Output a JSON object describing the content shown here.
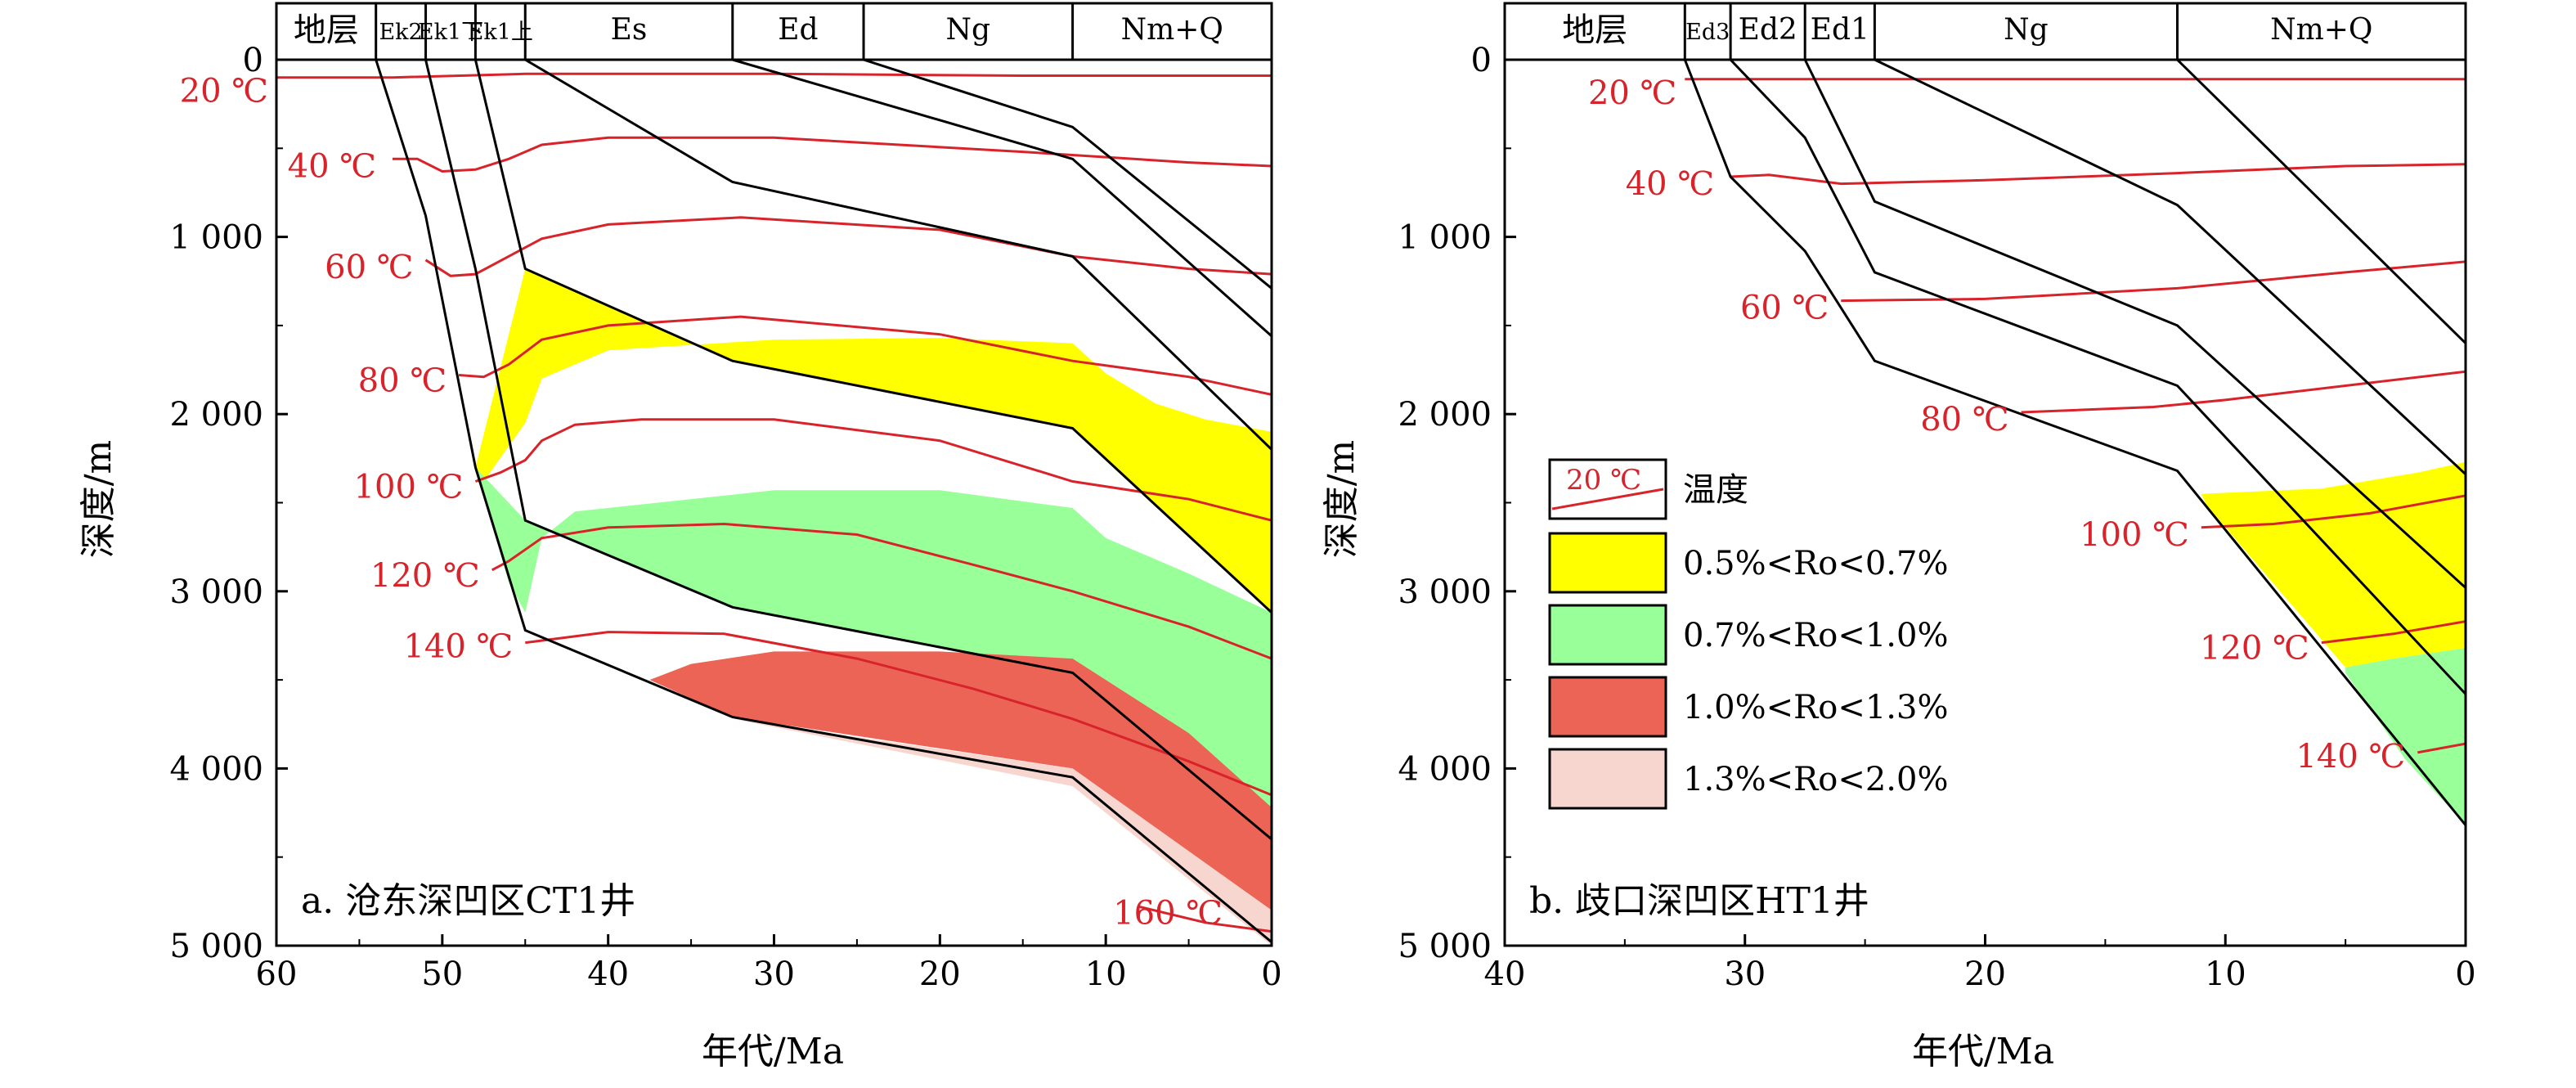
{
  "colors": {
    "isotherm": "#d8232a",
    "ro_0.5_0.7": "#ffff00",
    "ro_0.7_1.0": "#99ff99",
    "ro_1.0_1.3": "#eb6456",
    "ro_1.3_2.0": "#f7d6d0",
    "boundary": "#000000"
  },
  "common": {
    "strat_header_label": "地层",
    "x_axis_title": "年代/Ma",
    "y_axis_title": "深度/m",
    "y_ticks": [
      "0",
      "1 000",
      "2 000",
      "3 000",
      "4 000",
      "5 000"
    ]
  },
  "legend": {
    "temperature_sample": "20 ℃",
    "temperature": "温度",
    "ro_classes": [
      {
        "label": "0.5%<Ro<0.7%",
        "color": "#ffff00"
      },
      {
        "label": "0.7%<Ro<1.0%",
        "color": "#99ff99"
      },
      {
        "label": "1.0%<Ro<1.3%",
        "color": "#eb6456"
      },
      {
        "label": "1.3%<Ro<2.0%",
        "color": "#f7d6d0"
      }
    ]
  },
  "chart_data": [
    {
      "type": "area",
      "panel_label": "a. 沧东深凹区CT1井",
      "xlim": [
        60,
        0
      ],
      "ylim": [
        0,
        5000
      ],
      "x_ticks": [
        "60",
        "50",
        "40",
        "30",
        "20",
        "10",
        "0"
      ],
      "x_tick_values": [
        60,
        50,
        40,
        30,
        20,
        10,
        0
      ],
      "y_tick_values": [
        0,
        1000,
        2000,
        3000,
        4000,
        5000
      ],
      "strata": [
        {
          "label": "Ek2",
          "from": 54,
          "to": 51
        },
        {
          "label": "Ek1下",
          "from": 51,
          "to": 48
        },
        {
          "label": "Ek1上",
          "from": 48,
          "to": 45
        },
        {
          "label": "Es",
          "from": 45,
          "to": 32.5
        },
        {
          "label": "Ed",
          "from": 32.5,
          "to": 24.6
        },
        {
          "label": "Ng",
          "from": 24.6,
          "to": 12
        },
        {
          "label": "Nm+Q",
          "from": 12,
          "to": 0
        }
      ],
      "burial_curves": [
        [
          [
            54,
            0
          ],
          [
            51,
            880
          ],
          [
            48,
            2300
          ],
          [
            45,
            3220
          ],
          [
            32.5,
            3710
          ],
          [
            12,
            4050
          ],
          [
            0,
            4980
          ]
        ],
        [
          [
            51,
            0
          ],
          [
            48,
            1180
          ],
          [
            45,
            2600
          ],
          [
            32.5,
            3090
          ],
          [
            12,
            3460
          ],
          [
            0,
            4400
          ]
        ],
        [
          [
            48,
            0
          ],
          [
            45,
            1180
          ],
          [
            32.5,
            1700
          ],
          [
            12,
            2080
          ],
          [
            0,
            3120
          ]
        ],
        [
          [
            45,
            0
          ],
          [
            32.5,
            690
          ],
          [
            12,
            1110
          ],
          [
            0,
            2200
          ]
        ],
        [
          [
            32.5,
            0
          ],
          [
            12,
            560
          ],
          [
            0,
            1560
          ]
        ],
        [
          [
            24.6,
            0
          ],
          [
            12,
            380
          ],
          [
            0,
            1290
          ]
        ]
      ],
      "isotherms": [
        {
          "label": "20 ℃",
          "points": [
            [
              60,
              100
            ],
            [
              53,
              100
            ],
            [
              45,
              80
            ],
            [
              30,
              80
            ],
            [
              15,
              90
            ],
            [
              0,
              90
            ]
          ]
        },
        {
          "label": "40 ℃",
          "points": [
            [
              53,
              560
            ],
            [
              51.5,
              560
            ],
            [
              50,
              630
            ],
            [
              48,
              620
            ],
            [
              46,
              560
            ],
            [
              44,
              480
            ],
            [
              40,
              440
            ],
            [
              30,
              440
            ],
            [
              15,
              520
            ],
            [
              5,
              580
            ],
            [
              0,
              600
            ]
          ]
        },
        {
          "label": "60 ℃",
          "points": [
            [
              51,
              1130
            ],
            [
              49.5,
              1220
            ],
            [
              48,
              1210
            ],
            [
              46,
              1110
            ],
            [
              44,
              1010
            ],
            [
              40,
              930
            ],
            [
              32,
              890
            ],
            [
              20,
              960
            ],
            [
              12,
              1110
            ],
            [
              5,
              1180
            ],
            [
              0,
              1210
            ]
          ]
        },
        {
          "label": "80 ℃",
          "points": [
            [
              49,
              1780
            ],
            [
              47.5,
              1790
            ],
            [
              46,
              1720
            ],
            [
              44,
              1580
            ],
            [
              40,
              1500
            ],
            [
              32,
              1450
            ],
            [
              20,
              1550
            ],
            [
              12,
              1700
            ],
            [
              5,
              1790
            ],
            [
              0,
              1890
            ]
          ]
        },
        {
          "label": "100 ℃",
          "points": [
            [
              48,
              2380
            ],
            [
              46.5,
              2330
            ],
            [
              45,
              2260
            ],
            [
              44,
              2150
            ],
            [
              42,
              2060
            ],
            [
              38,
              2030
            ],
            [
              30,
              2030
            ],
            [
              20,
              2150
            ],
            [
              12,
              2380
            ],
            [
              5,
              2480
            ],
            [
              0,
              2600
            ]
          ]
        },
        {
          "label": "120 ℃",
          "points": [
            [
              47,
              2880
            ],
            [
              46,
              2830
            ],
            [
              44,
              2700
            ],
            [
              40,
              2640
            ],
            [
              33,
              2620
            ],
            [
              25,
              2680
            ],
            [
              18,
              2850
            ],
            [
              12,
              3000
            ],
            [
              5,
              3200
            ],
            [
              0,
              3380
            ]
          ]
        },
        {
          "label": "140 ℃",
          "points": [
            [
              45,
              3290
            ],
            [
              40,
              3230
            ],
            [
              33,
              3240
            ],
            [
              25,
              3380
            ],
            [
              18,
              3550
            ],
            [
              12,
              3720
            ],
            [
              5,
              3960
            ],
            [
              0,
              4150
            ]
          ]
        },
        {
          "label": "160 ℃",
          "points": [
            [
              8,
              4780
            ],
            [
              4,
              4870
            ],
            [
              0,
              4920
            ]
          ]
        }
      ],
      "ro_zones": [
        {
          "class": "0.5%<Ro<0.7%",
          "polygon": [
            [
              47.5,
              2380
            ],
            [
              45,
              2050
            ],
            [
              44,
              1800
            ],
            [
              40,
              1640
            ],
            [
              30,
              1580
            ],
            [
              20,
              1570
            ],
            [
              12,
              1600
            ],
            [
              10,
              1770
            ],
            [
              7,
              1940
            ],
            [
              4,
              2030
            ],
            [
              0,
              2100
            ],
            [
              0,
              3120
            ],
            [
              12,
              2080
            ],
            [
              32.5,
              1700
            ],
            [
              45,
              1180
            ],
            [
              48,
              2300
            ]
          ]
        },
        {
          "class": "0.7%<Ro<1.0%",
          "polygon": [
            [
              45,
              3120
            ],
            [
              44,
              2700
            ],
            [
              42,
              2550
            ],
            [
              30,
              2430
            ],
            [
              20,
              2430
            ],
            [
              12,
              2530
            ],
            [
              10,
              2700
            ],
            [
              5,
              2900
            ],
            [
              0,
              3120
            ],
            [
              0,
              4220
            ],
            [
              12,
              3460
            ],
            [
              32.5,
              3090
            ],
            [
              45,
              2600
            ],
            [
              48,
              2300
            ],
            [
              46,
              2950
            ]
          ]
        },
        {
          "class": "1.0%<Ro<1.3%",
          "polygon": [
            [
              37.5,
              3500
            ],
            [
              35,
              3410
            ],
            [
              30,
              3340
            ],
            [
              20,
              3340
            ],
            [
              12,
              3380
            ],
            [
              5,
              3800
            ],
            [
              0,
              4220
            ],
            [
              0,
              4800
            ],
            [
              12,
              4000
            ],
            [
              32.5,
              3710
            ]
          ]
        },
        {
          "class": "1.3%<Ro<2.0%",
          "polygon": [
            [
              12,
              4000
            ],
            [
              0,
              4800
            ],
            [
              0,
              5000
            ],
            [
              12,
              4100
            ],
            [
              32.5,
              3720
            ]
          ]
        }
      ]
    },
    {
      "type": "area",
      "panel_label": "b. 歧口深凹区HT1井",
      "xlim": [
        40,
        0
      ],
      "ylim": [
        0,
        5000
      ],
      "x_ticks": [
        "40",
        "30",
        "20",
        "10",
        "0"
      ],
      "x_tick_values": [
        40,
        30,
        20,
        10,
        0
      ],
      "y_tick_values": [
        0,
        1000,
        2000,
        3000,
        4000,
        5000
      ],
      "strata": [
        {
          "label": "Ed3",
          "from": 32.5,
          "to": 30.6
        },
        {
          "label": "Ed2",
          "from": 30.6,
          "to": 27.5
        },
        {
          "label": "Ed1",
          "from": 27.5,
          "to": 24.6
        },
        {
          "label": "Ng",
          "from": 24.6,
          "to": 12
        },
        {
          "label": "Nm+Q",
          "from": 12,
          "to": 0
        }
      ],
      "burial_curves": [
        [
          [
            32.5,
            0
          ],
          [
            30.6,
            660
          ],
          [
            27.5,
            1080
          ],
          [
            24.6,
            1700
          ],
          [
            12,
            2320
          ],
          [
            0,
            4320
          ]
        ],
        [
          [
            30.6,
            0
          ],
          [
            27.5,
            440
          ],
          [
            24.6,
            1200
          ],
          [
            12,
            1840
          ],
          [
            0,
            3580
          ]
        ],
        [
          [
            27.5,
            0
          ],
          [
            24.6,
            800
          ],
          [
            12,
            1500
          ],
          [
            0,
            2980
          ]
        ],
        [
          [
            24.6,
            0
          ],
          [
            12,
            820
          ],
          [
            0,
            2340
          ]
        ],
        [
          [
            12,
            0
          ],
          [
            0,
            1600
          ]
        ]
      ],
      "isotherms": [
        {
          "label": "20 ℃",
          "points": [
            [
              32.5,
              110
            ],
            [
              20,
              110
            ],
            [
              10,
              110
            ],
            [
              0,
              110
            ]
          ]
        },
        {
          "label": "40 ℃",
          "points": [
            [
              30.6,
              660
            ],
            [
              29,
              650
            ],
            [
              26,
              700
            ],
            [
              20,
              680
            ],
            [
              12,
              640
            ],
            [
              5,
              600
            ],
            [
              0,
              590
            ]
          ]
        },
        {
          "label": "60 ℃",
          "points": [
            [
              26,
              1360
            ],
            [
              20,
              1350
            ],
            [
              12,
              1290
            ],
            [
              5,
              1200
            ],
            [
              0,
              1140
            ]
          ]
        },
        {
          "label": "80 ℃",
          "points": [
            [
              18.5,
              1990
            ],
            [
              13,
              1960
            ],
            [
              10,
              1920
            ],
            [
              5,
              1840
            ],
            [
              0,
              1760
            ]
          ]
        },
        {
          "label": "100 ℃",
          "points": [
            [
              11,
              2640
            ],
            [
              8,
              2620
            ],
            [
              4,
              2560
            ],
            [
              0,
              2460
            ]
          ]
        },
        {
          "label": "120 ℃",
          "points": [
            [
              6,
              3290
            ],
            [
              3,
              3240
            ],
            [
              0,
              3170
            ]
          ]
        },
        {
          "label": "140 ℃",
          "points": [
            [
              2,
              3910
            ],
            [
              0,
              3860
            ]
          ]
        }
      ],
      "ro_zones": [
        {
          "class": "0.5%<Ro<0.7%",
          "polygon": [
            [
              11,
              2450
            ],
            [
              6,
              2420
            ],
            [
              2,
              2330
            ],
            [
              0,
              2270
            ],
            [
              0,
              3320
            ],
            [
              3,
              3380
            ],
            [
              5,
              3430
            ],
            [
              9.3,
              2750
            ],
            [
              10.8,
              2510
            ]
          ]
        },
        {
          "class": "0.7%<Ro<1.0%",
          "polygon": [
            [
              5,
              3430
            ],
            [
              3,
              3380
            ],
            [
              0,
              3320
            ],
            [
              0,
              4320
            ],
            [
              2.5,
              3950
            ],
            [
              5,
              3460
            ]
          ]
        }
      ]
    }
  ]
}
